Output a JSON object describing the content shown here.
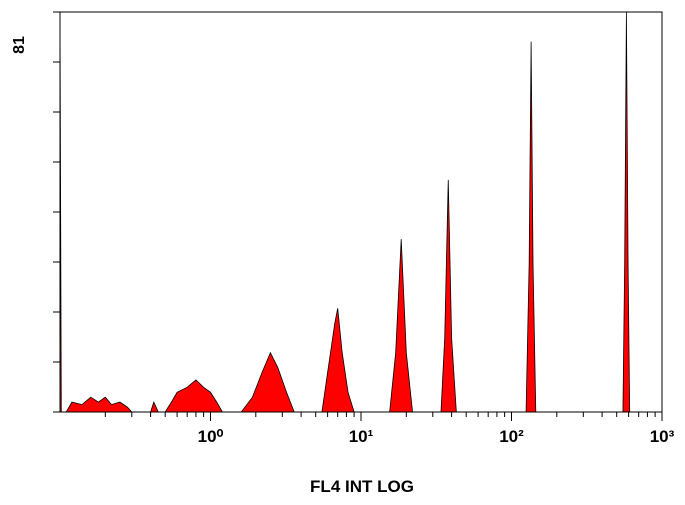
{
  "chart_data": {
    "type": "area",
    "xlabel": "FL4 INT LOG",
    "xscale": "log",
    "color": "#ff0000",
    "edge_color": "#000000",
    "xlim": [
      0.1,
      1000
    ],
    "xticks": [
      {
        "value": 1,
        "label": "10⁰"
      },
      {
        "value": 10,
        "label": "10¹"
      },
      {
        "value": 100,
        "label": "10²"
      },
      {
        "value": 1000,
        "label": "10³"
      }
    ],
    "x_minor_ticks": [
      0.2,
      0.3,
      0.4,
      0.5,
      0.6,
      0.7,
      0.8,
      0.9,
      2,
      3,
      4,
      5,
      6,
      7,
      8,
      9,
      20,
      30,
      40,
      50,
      60,
      70,
      80,
      90,
      200,
      300,
      400,
      500,
      600,
      700,
      800,
      900
    ],
    "ylim": [
      0,
      81
    ],
    "yticks": [
      0,
      10.125,
      20.25,
      30.375,
      40.5,
      50.625,
      60.75,
      70.875,
      81
    ],
    "x": [
      0.1,
      0.102,
      0.11,
      0.12,
      0.14,
      0.16,
      0.18,
      0.2,
      0.22,
      0.25,
      0.28,
      0.3,
      0.4,
      0.42,
      0.45,
      0.5,
      0.55,
      0.6,
      0.7,
      0.8,
      0.9,
      1.0,
      1.1,
      1.2,
      1.6,
      1.9,
      2.2,
      2.5,
      2.8,
      3.2,
      3.6,
      5.5,
      6.0,
      6.7,
      7.0,
      7.5,
      8.2,
      9,
      15.5,
      17,
      18.5,
      20,
      22,
      34,
      36,
      38,
      40,
      43,
      125,
      131,
      135,
      139,
      145,
      550,
      565,
      580,
      595,
      610
    ],
    "values": [
      81,
      0,
      0,
      2,
      1.5,
      3,
      2,
      3,
      1.5,
      2,
      1,
      0,
      0,
      2,
      0,
      0,
      2,
      4,
      5,
      6.5,
      5,
      4,
      2,
      0,
      0,
      3,
      8,
      12,
      9,
      4,
      0,
      0,
      8,
      18,
      21,
      12,
      4,
      0,
      0,
      12,
      35,
      12,
      0,
      0,
      15,
      47,
      15,
      0,
      0,
      30,
      75,
      30,
      0,
      0,
      30,
      81,
      30,
      0
    ]
  }
}
